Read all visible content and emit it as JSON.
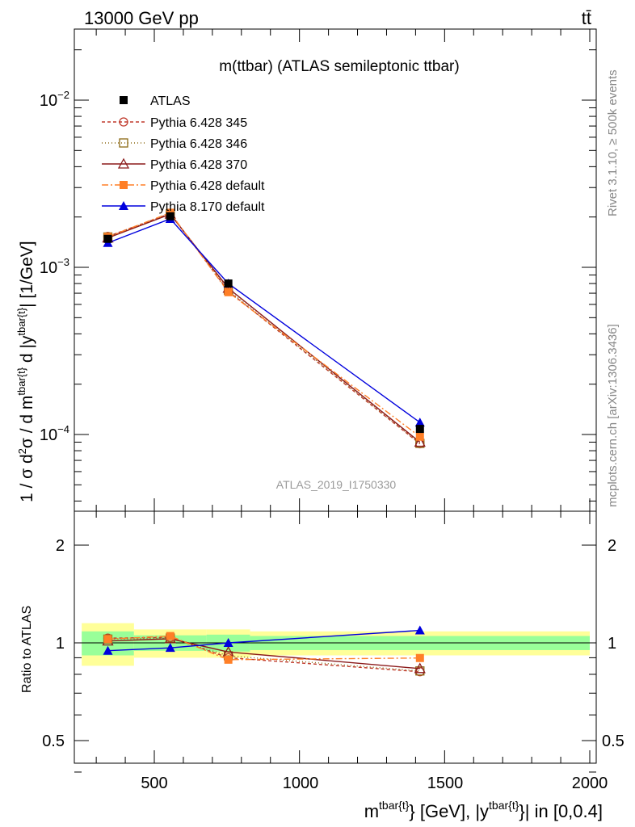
{
  "header": {
    "energy_label": "13000 GeV pp",
    "process_label": "tt̄",
    "plot_title": "m(ttbar) (ATLAS semileptonic ttbar)",
    "analysis_id": "ATLAS_2019_I1750330",
    "side_label_top": "Rivet 3.1.10, ≥ 500k events",
    "side_label_bottom": "mcplots.cern.ch [arXiv:1306.3436]"
  },
  "axes": {
    "main_ylabel": "1 / σ d²σ / d m^{tbar{t}} d |y^{tbar{t}}| [1/GeV]",
    "ratio_ylabel": "Ratio to ATLAS",
    "xlabel": "m^{tbar{t}} [GeV], |y^{tbar{t}}| in [0,0.4]",
    "x_ticks": [
      "500",
      "1000",
      "1500",
      "2000"
    ],
    "y_ticks_main": [
      "10^{-2}",
      "10^{-3}",
      "10^{-4}"
    ],
    "y_ticks_ratio": [
      "2",
      "1",
      "0.5"
    ]
  },
  "legend": [
    {
      "label": "ATLAS",
      "color": "#000000",
      "marker": "square-filled",
      "dash": "none"
    },
    {
      "label": "Pythia 6.428 345",
      "color": "#c0392b",
      "marker": "circle-open",
      "dash": "4,3"
    },
    {
      "label": "Pythia 6.428 346",
      "color": "#8b6914",
      "marker": "square-open",
      "dash": "1,3"
    },
    {
      "label": "Pythia 6.428 370",
      "color": "#8b1a1a",
      "marker": "triangle-open",
      "dash": "none"
    },
    {
      "label": "Pythia 6.428 default",
      "color": "#ff7f27",
      "marker": "square-filled",
      "dash": "8,3,2,3"
    },
    {
      "label": "Pythia 8.170 default",
      "color": "#0000dd",
      "marker": "triangle-filled",
      "dash": "none"
    }
  ],
  "chart_data": {
    "type": "line",
    "title": "m(ttbar) (ATLAS semileptonic ttbar)",
    "xlim": [
      220,
      2040
    ],
    "ylim_main": [
      3e-05,
      0.03
    ],
    "yscale_main": "log",
    "ylim_ratio": [
      0.4,
      2.3
    ],
    "yscale_ratio": "log",
    "bins": [
      [
        250,
        430
      ],
      [
        430,
        680
      ],
      [
        680,
        830
      ],
      [
        830,
        2000
      ]
    ],
    "x": [
      340,
      555,
      755,
      1415
    ],
    "data": {
      "name": "ATLAS",
      "values": [
        0.00148,
        0.00202,
        0.0008,
        0.000108
      ]
    },
    "band_inner": [
      0.085,
      0.055,
      0.06,
      0.05
    ],
    "band_outer": [
      0.15,
      0.1,
      0.1,
      0.085
    ],
    "series": [
      {
        "name": "Pythia 6.428 345",
        "values": [
          0.00153,
          0.0021,
          0.00072,
          8.8e-05
        ]
      },
      {
        "name": "Pythia 6.428 346",
        "values": [
          0.00152,
          0.00209,
          0.00073,
          8.85e-05
        ]
      },
      {
        "name": "Pythia 6.428 370",
        "values": [
          0.0015,
          0.00208,
          0.00075,
          9e-05
        ]
      },
      {
        "name": "Pythia 6.428 default",
        "values": [
          0.00152,
          0.00212,
          0.00071,
          9.7e-05
        ]
      },
      {
        "name": "Pythia 8.170 default",
        "values": [
          0.0014,
          0.00195,
          0.0008,
          0.000118
        ]
      }
    ]
  }
}
